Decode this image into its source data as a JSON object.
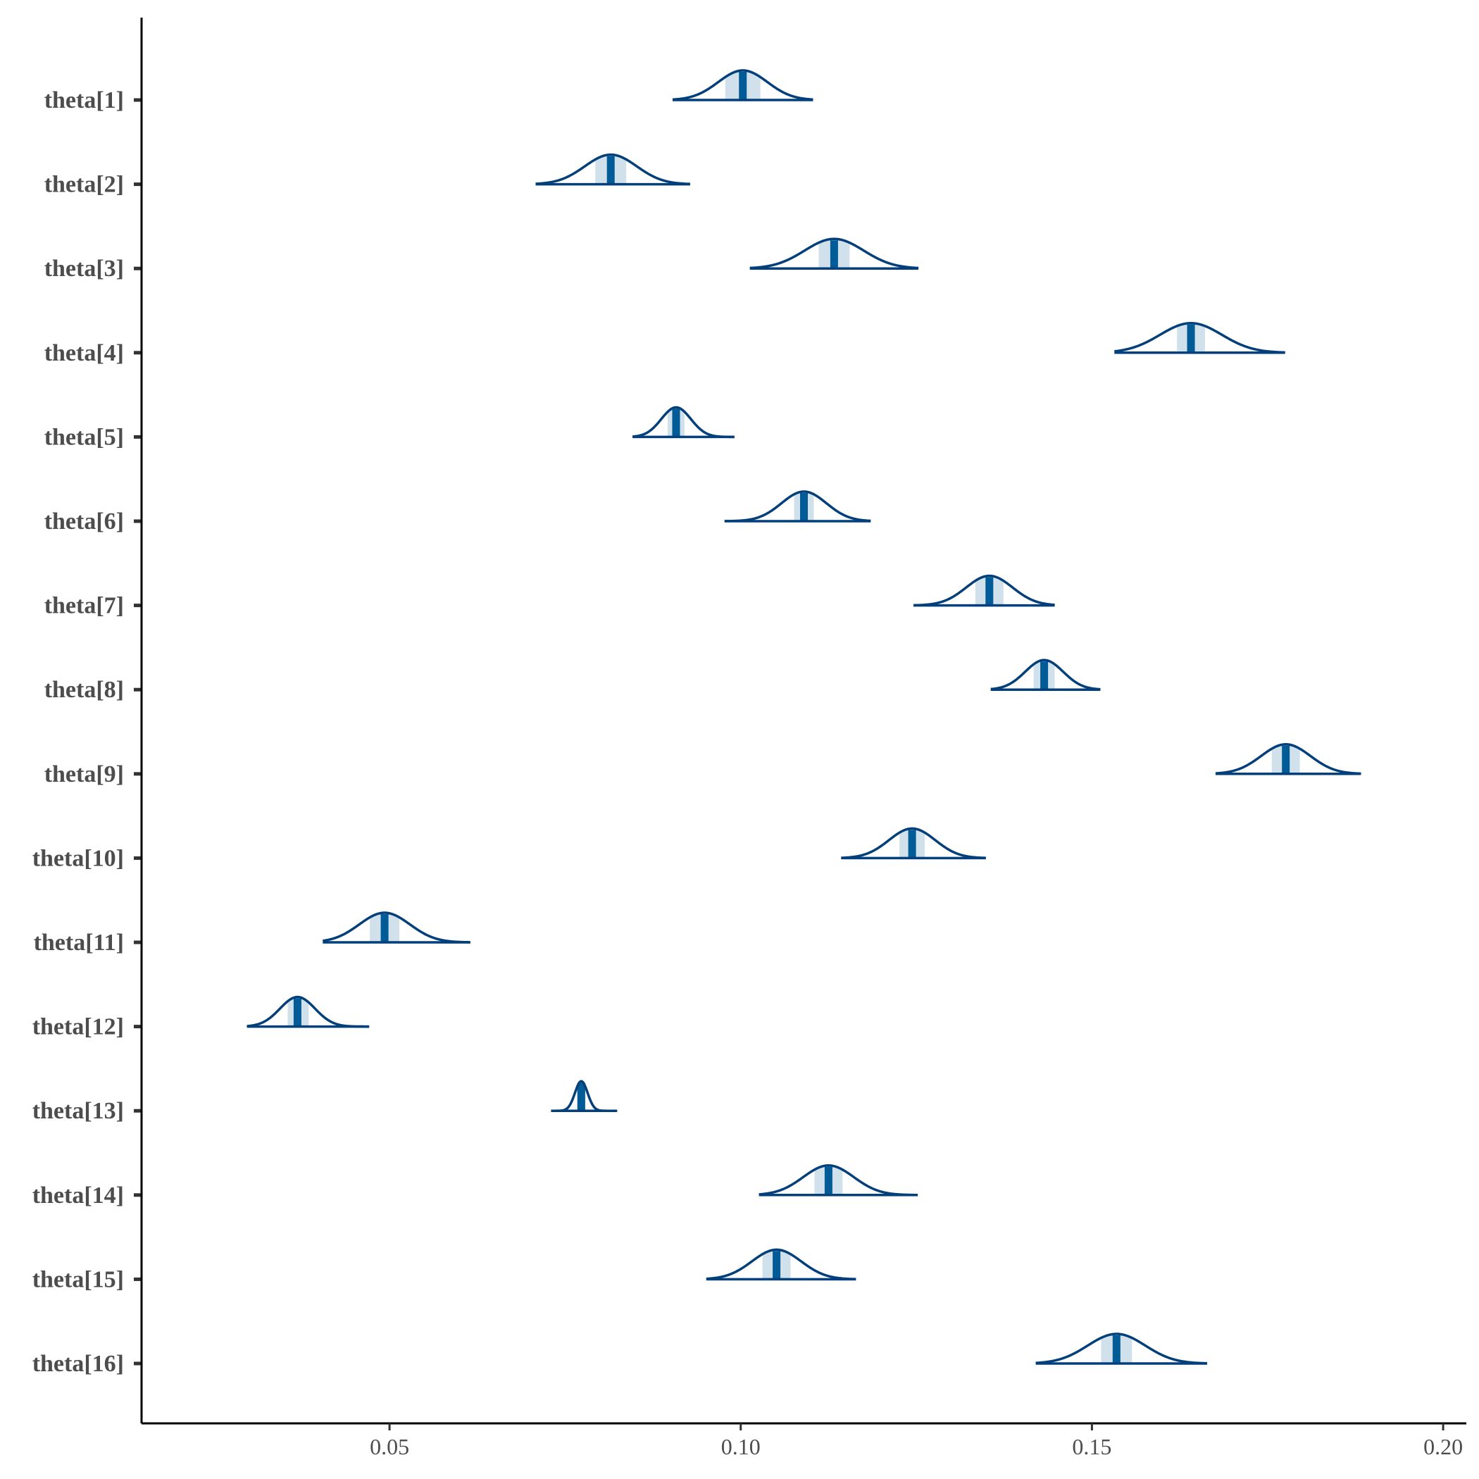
{
  "chart_data": {
    "type": "area",
    "title": "",
    "xlabel": "",
    "ylabel": "",
    "xlim": [
      0.0147,
      0.2033
    ],
    "x_ticks": [
      "0.05",
      "0.10",
      "0.15",
      "0.20"
    ],
    "x_tick_values": [
      0.05,
      0.1,
      0.15,
      0.2
    ],
    "grid": false,
    "legend": "none",
    "colors": {
      "outline": "#033f7a",
      "median": "#005b96",
      "inner_fill": "#d1e1ec",
      "axis": "#000000",
      "tick": "#333333",
      "label": "#4d4d4d"
    },
    "parameters": [
      {
        "name": "theta[1]",
        "median": 0.1003,
        "sd": 0.0035,
        "inner": [
          0.0978,
          0.1028
        ],
        "range": [
          0.0903,
          0.1103
        ]
      },
      {
        "name": "theta[2]",
        "median": 0.0815,
        "sd": 0.0037,
        "inner": [
          0.0793,
          0.0837
        ],
        "range": [
          0.0708,
          0.0928
        ]
      },
      {
        "name": "theta[3]",
        "median": 0.1133,
        "sd": 0.0042,
        "inner": [
          0.1111,
          0.1155
        ],
        "range": [
          0.1013,
          0.1253
        ]
      },
      {
        "name": "theta[4]",
        "median": 0.1641,
        "sd": 0.0044,
        "inner": [
          0.1621,
          0.1661
        ],
        "range": [
          0.1532,
          0.1775
        ]
      },
      {
        "name": "theta[5]",
        "median": 0.0908,
        "sd": 0.0021,
        "inner": [
          0.0896,
          0.092
        ],
        "range": [
          0.0846,
          0.0991
        ]
      },
      {
        "name": "theta[6]",
        "median": 0.109,
        "sd": 0.0032,
        "inner": [
          0.1076,
          0.1104
        ],
        "range": [
          0.0977,
          0.1185
        ]
      },
      {
        "name": "theta[7]",
        "median": 0.1354,
        "sd": 0.0033,
        "inner": [
          0.1334,
          0.1374
        ],
        "range": [
          0.1246,
          0.1447
        ]
      },
      {
        "name": "theta[8]",
        "median": 0.1432,
        "sd": 0.0027,
        "inner": [
          0.1417,
          0.1447
        ],
        "range": [
          0.1356,
          0.1512
        ]
      },
      {
        "name": "theta[9]",
        "median": 0.1776,
        "sd": 0.0035,
        "inner": [
          0.1756,
          0.1796
        ],
        "range": [
          0.1676,
          0.1883
        ]
      },
      {
        "name": "theta[10]",
        "median": 0.1244,
        "sd": 0.0033,
        "inner": [
          0.1226,
          0.1262
        ],
        "range": [
          0.1143,
          0.1349
        ]
      },
      {
        "name": "theta[11]",
        "median": 0.0493,
        "sd": 0.0036,
        "inner": [
          0.0472,
          0.0514
        ],
        "range": [
          0.0405,
          0.0615
        ]
      },
      {
        "name": "theta[12]",
        "median": 0.0369,
        "sd": 0.0025,
        "inner": [
          0.0355,
          0.0385
        ],
        "range": [
          0.0297,
          0.0471
        ]
      },
      {
        "name": "theta[13]",
        "median": 0.0773,
        "sd": 0.0009,
        "inner": [
          0.0767,
          0.0779
        ],
        "range": [
          0.073,
          0.0824
        ]
      },
      {
        "name": "theta[14]",
        "median": 0.1125,
        "sd": 0.0036,
        "inner": [
          0.1105,
          0.1145
        ],
        "range": [
          0.1026,
          0.1252
        ]
      },
      {
        "name": "theta[15]",
        "median": 0.1051,
        "sd": 0.0035,
        "inner": [
          0.1031,
          0.1071
        ],
        "range": [
          0.0951,
          0.1164
        ]
      },
      {
        "name": "theta[16]",
        "median": 0.1535,
        "sd": 0.0041,
        "inner": [
          0.1513,
          0.1557
        ],
        "range": [
          0.142,
          0.1664
        ]
      }
    ]
  }
}
